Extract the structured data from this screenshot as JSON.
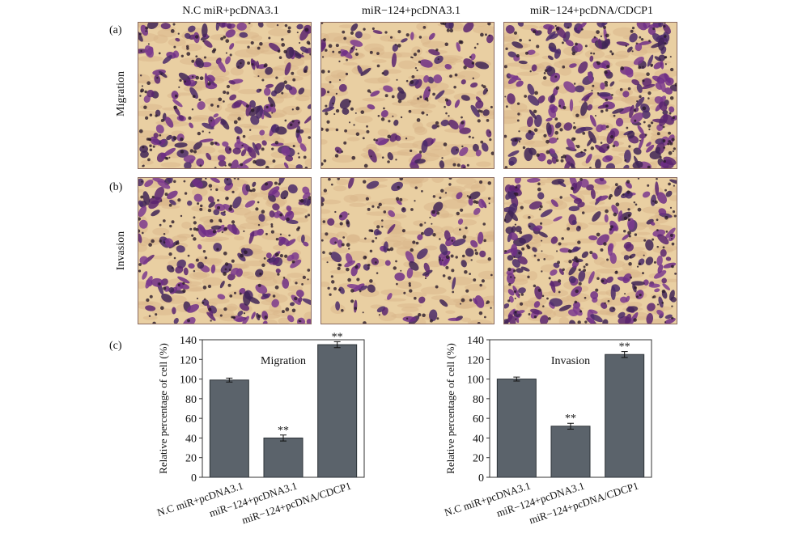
{
  "panels": {
    "a": "(a)",
    "b": "(b)",
    "c": "(c)"
  },
  "columns": [
    "N.C miR+pcDNA3.1",
    "miR−124+pcDNA3.1",
    "miR−124+pcDNA/CDCP1"
  ],
  "rows": [
    "Migration",
    "Invasion"
  ],
  "colors": {
    "bar": "#5b636b",
    "stain": "#6a2a7a",
    "background": "#e9cfa2"
  },
  "chart_data": [
    {
      "type": "bar",
      "title": "Migration",
      "ylabel": "Relative percentage of cell (%)",
      "xlabel": "",
      "categories": [
        "N.C miR+pcDNA3.1",
        "miR−124+pcDNA3.1",
        "miR−124+pcDNA/CDCP1"
      ],
      "values": [
        99,
        40,
        135
      ],
      "errors": [
        2,
        3,
        3
      ],
      "annotations": [
        "",
        "**",
        "**"
      ],
      "ylim": [
        0,
        140
      ],
      "yticks": [
        "0",
        "20",
        "40",
        "60",
        "80",
        "100",
        "120",
        "140"
      ],
      "grid": false
    },
    {
      "type": "bar",
      "title": "Invasion",
      "ylabel": "Relative percentage of cell (%)",
      "xlabel": "",
      "categories": [
        "N.C miR+pcDNA3.1",
        "miR−124+pcDNA3.1",
        "miR−124+pcDNA/CDCP1"
      ],
      "values": [
        100,
        52,
        125
      ],
      "errors": [
        2,
        3,
        3
      ],
      "annotations": [
        "",
        "**",
        "**"
      ],
      "ylim": [
        0,
        140
      ],
      "yticks": [
        "0",
        "20",
        "40",
        "60",
        "80",
        "100",
        "120",
        "140"
      ],
      "grid": false
    }
  ]
}
